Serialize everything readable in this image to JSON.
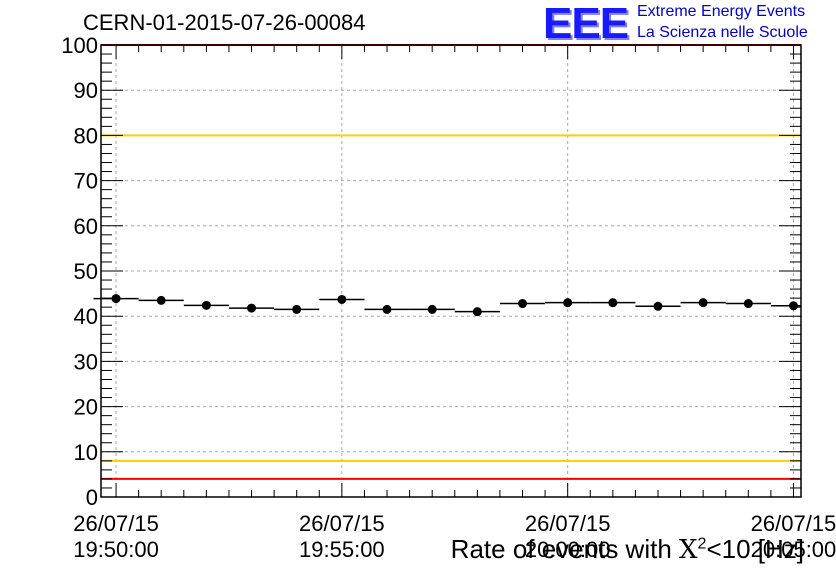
{
  "header": {
    "run_id": "CERN-01-2015-07-26-00084",
    "logo_text": "EEE",
    "org_line1": "Extreme Energy Events",
    "org_line2": "La Scienza nelle Scuole"
  },
  "chart_data": {
    "type": "scatter",
    "title": "",
    "xlabel_prefix": "Rate of events with ",
    "xlabel_chi": "X",
    "xlabel_sup": "2",
    "xlabel_suffix": "<10 [Hz]",
    "ylabel": "",
    "ylim": [
      0,
      100
    ],
    "yticks": [
      0,
      10,
      20,
      30,
      40,
      50,
      60,
      70,
      80,
      90,
      100
    ],
    "xlim": [
      "2015-07-26 19:49:40",
      "2015-07-26 20:05:10"
    ],
    "xticks": [
      {
        "x": "2015-07-26 19:50:00",
        "date": "26/07/15",
        "time": "19:50:00"
      },
      {
        "x": "2015-07-26 19:55:00",
        "date": "26/07/15",
        "time": "19:55:00"
      },
      {
        "x": "2015-07-26 20:00:00",
        "date": "26/07/15",
        "time": "20:00:00"
      },
      {
        "x": "2015-07-26 20:05:00",
        "date": "26/07/15",
        "time": "20:05:00"
      }
    ],
    "grid": true,
    "bin_width_seconds": 60,
    "series": [
      {
        "x": [
          "2015-07-26 19:50:00",
          "2015-07-26 19:51:00",
          "2015-07-26 19:52:00",
          "2015-07-26 19:53:00",
          "2015-07-26 19:54:00",
          "2015-07-26 19:55:00",
          "2015-07-26 19:56:00",
          "2015-07-26 19:57:00",
          "2015-07-26 19:58:00",
          "2015-07-26 19:59:00",
          "2015-07-26 20:00:00",
          "2015-07-26 20:01:00",
          "2015-07-26 20:02:00",
          "2015-07-26 20:03:00",
          "2015-07-26 20:04:00",
          "2015-07-26 20:05:00"
        ],
        "y": [
          43.9,
          43.5,
          42.4,
          41.8,
          41.5,
          43.7,
          41.5,
          41.5,
          41.0,
          42.8,
          43.0,
          43.0,
          42.2,
          43.0,
          42.8,
          42.3
        ],
        "color": "#000000"
      }
    ],
    "reference_lines": [
      {
        "y": 100,
        "color": "#ff0000"
      },
      {
        "y": 80,
        "color": "#ffcc00"
      },
      {
        "y": 8,
        "color": "#ffcc00"
      },
      {
        "y": 4,
        "color": "#ff0000"
      }
    ]
  }
}
